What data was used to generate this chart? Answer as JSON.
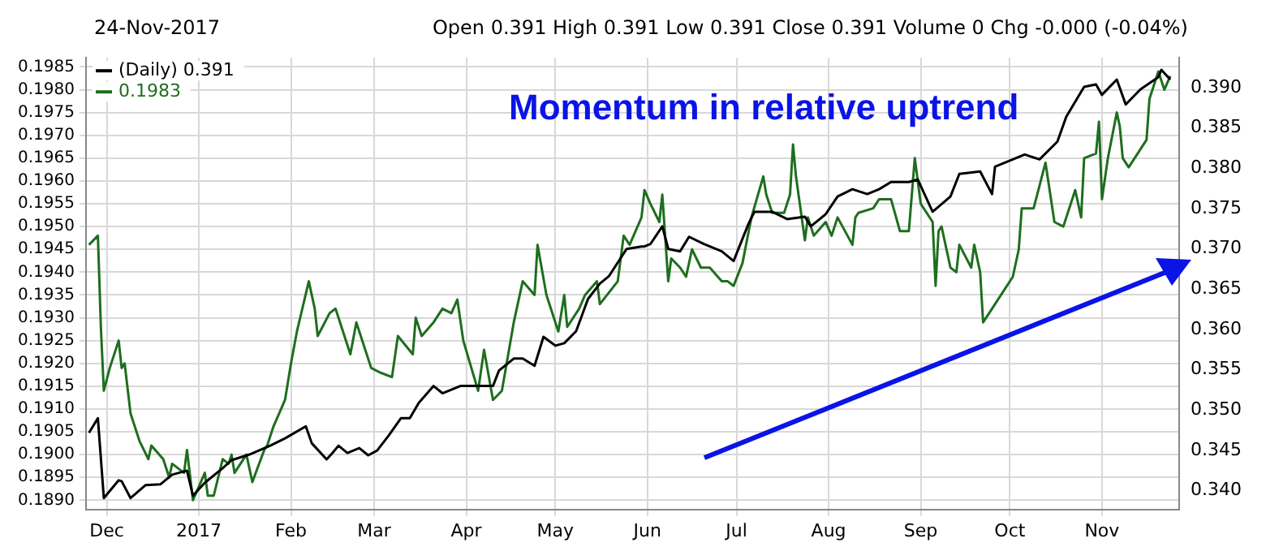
{
  "chart_data": {
    "type": "line",
    "title": "Momentum in relative uptrend",
    "annotations": [
      "24-Nov-2017",
      "Open 0.391 High 0.391 Low 0.391 Close 0.391 Volume 0 Chg -0.000 (-0.04%)"
    ],
    "legend": "top left",
    "grid": true,
    "marker": "none",
    "line_style": "solid",
    "xlim": [
      "2016-11-24",
      "2017-11-27"
    ],
    "xticks": [
      {
        "value": "2016-12-01",
        "label": "Dec"
      },
      {
        "value": "2017-01-01",
        "label": "2017"
      },
      {
        "value": "2017-02-01",
        "label": "Feb"
      },
      {
        "value": "2017-03-01",
        "label": "Mar"
      },
      {
        "value": "2017-04-01",
        "label": "Apr"
      },
      {
        "value": "2017-05-01",
        "label": "May"
      },
      {
        "value": "2017-06-01",
        "label": "Jun"
      },
      {
        "value": "2017-07-01",
        "label": "Jul"
      },
      {
        "value": "2017-08-01",
        "label": "Aug"
      },
      {
        "value": "2017-09-01",
        "label": "Sep"
      },
      {
        "value": "2017-10-01",
        "label": "Oct"
      },
      {
        "value": "2017-11-01",
        "label": "Nov"
      }
    ],
    "ylim": [
      0.1888,
      0.1987
    ],
    "yticks": [
      {
        "value": 0.189,
        "label": "0.1890"
      },
      0.1895,
      {
        "value": 0.19,
        "label": "0.1900"
      },
      0.1905,
      {
        "value": 0.191,
        "label": "0.1910"
      },
      0.1915,
      {
        "value": 0.192,
        "label": "0.1920"
      },
      0.1925,
      {
        "value": 0.193,
        "label": "0.1930"
      },
      0.1935,
      {
        "value": 0.194,
        "label": "0.1940"
      },
      0.1945,
      {
        "value": 0.195,
        "label": "0.1950"
      },
      0.1955,
      {
        "value": 0.196,
        "label": "0.1960"
      },
      0.1965,
      {
        "value": 0.197,
        "label": "0.1970"
      },
      0.1975,
      {
        "value": 0.198,
        "label": "0.1980"
      },
      0.1985
    ],
    "y2lim": [
      0.3377,
      0.3937
    ],
    "y2ticks": [
      {
        "value": 0.34,
        "label": "0.340"
      },
      0.345,
      {
        "value": 0.35,
        "label": "0.350"
      },
      0.355,
      {
        "value": 0.36,
        "label": "0.360"
      },
      0.365,
      {
        "value": 0.37,
        "label": "0.370"
      },
      0.375,
      {
        "value": 0.38,
        "label": "0.380"
      },
      0.385,
      {
        "value": 0.39,
        "label": "0.390"
      }
    ],
    "series": [
      {
        "name": "(Daily) 0.391",
        "color": "#000000",
        "axis": "y2",
        "x": [
          "2016-11-25",
          "2016-11-28",
          "2016-11-30",
          "2016-12-05",
          "2016-12-06",
          "2016-12-09",
          "2016-12-14",
          "2016-12-19",
          "2016-12-23",
          "2016-12-28",
          "2016-12-30",
          "2017-01-03",
          "2017-01-09",
          "2017-01-12",
          "2017-01-18",
          "2017-01-25",
          "2017-01-30",
          "2017-02-06",
          "2017-02-08",
          "2017-02-13",
          "2017-02-15",
          "2017-02-17",
          "2017-02-20",
          "2017-02-24",
          "2017-02-27",
          "2017-03-02",
          "2017-03-06",
          "2017-03-10",
          "2017-03-13",
          "2017-03-16",
          "2017-03-21",
          "2017-03-24",
          "2017-03-30",
          "2017-04-03",
          "2017-04-10",
          "2017-04-12",
          "2017-04-17",
          "2017-04-20",
          "2017-04-24",
          "2017-04-27",
          "2017-05-01",
          "2017-05-04",
          "2017-05-08",
          "2017-05-12",
          "2017-05-16",
          "2017-05-19",
          "2017-05-25",
          "2017-05-30",
          "2017-05-31",
          "2017-06-02",
          "2017-06-06",
          "2017-06-08",
          "2017-06-12",
          "2017-06-15",
          "2017-06-20",
          "2017-06-26",
          "2017-06-30",
          "2017-07-05",
          "2017-07-07",
          "2017-07-13",
          "2017-07-18",
          "2017-07-24",
          "2017-07-26",
          "2017-07-31",
          "2017-08-04",
          "2017-08-09",
          "2017-08-14",
          "2017-08-18",
          "2017-08-22",
          "2017-08-28",
          "2017-08-31",
          "2017-09-05",
          "2017-09-11",
          "2017-09-14",
          "2017-09-21",
          "2017-09-25",
          "2017-09-26",
          "2017-10-02",
          "2017-10-06",
          "2017-10-11",
          "2017-10-17",
          "2017-10-20",
          "2017-10-26",
          "2017-10-30",
          "2017-11-01",
          "2017-11-06",
          "2017-11-09",
          "2017-11-14",
          "2017-11-20",
          "2017-11-21",
          "2017-11-24"
        ],
        "values": [
          0.3472,
          0.349,
          0.3391,
          0.3413,
          0.3412,
          0.3391,
          0.3407,
          0.3408,
          0.342,
          0.3425,
          0.3394,
          0.341,
          0.3428,
          0.3438,
          0.3445,
          0.3456,
          0.3465,
          0.348,
          0.3459,
          0.3439,
          0.3447,
          0.3456,
          0.3447,
          0.3453,
          0.3444,
          0.345,
          0.3469,
          0.349,
          0.349,
          0.3509,
          0.353,
          0.3521,
          0.353,
          0.353,
          0.353,
          0.3549,
          0.3564,
          0.3564,
          0.3555,
          0.3591,
          0.358,
          0.3583,
          0.3598,
          0.3638,
          0.3657,
          0.3666,
          0.37,
          0.3703,
          0.3703,
          0.3706,
          0.3728,
          0.37,
          0.3697,
          0.3715,
          0.3706,
          0.3697,
          0.3685,
          0.3731,
          0.3746,
          0.3746,
          0.3737,
          0.374,
          0.3728,
          0.3743,
          0.3765,
          0.3774,
          0.3768,
          0.3774,
          0.3783,
          0.3783,
          0.3786,
          0.3746,
          0.3765,
          0.3793,
          0.3796,
          0.3768,
          0.3802,
          0.3811,
          0.3817,
          0.3811,
          0.3833,
          0.3864,
          0.3901,
          0.3904,
          0.3891,
          0.391,
          0.3879,
          0.3898,
          0.3913,
          0.3922,
          0.391
        ]
      },
      {
        "name": "0.1983",
        "color": "#1e6e1e",
        "x": [
          "2016-11-25",
          "2016-11-28",
          "2016-11-29",
          "2016-11-30",
          "2016-12-02",
          "2016-12-05",
          "2016-12-06",
          "2016-12-07",
          "2016-12-09",
          "2016-12-12",
          "2016-12-15",
          "2016-12-16",
          "2016-12-20",
          "2016-12-22",
          "2016-12-23",
          "2016-12-27",
          "2016-12-28",
          "2016-12-30",
          "2017-01-03",
          "2017-01-04",
          "2017-01-06",
          "2017-01-09",
          "2017-01-11",
          "2017-01-12",
          "2017-01-13",
          "2017-01-17",
          "2017-01-19",
          "2017-01-23",
          "2017-01-24",
          "2017-01-26",
          "2017-01-30",
          "2017-02-01",
          "2017-02-03",
          "2017-02-07",
          "2017-02-09",
          "2017-02-10",
          "2017-02-14",
          "2017-02-16",
          "2017-02-21",
          "2017-02-23",
          "2017-02-28",
          "2017-03-03",
          "2017-03-07",
          "2017-03-09",
          "2017-03-14",
          "2017-03-15",
          "2017-03-17",
          "2017-03-21",
          "2017-03-24",
          "2017-03-27",
          "2017-03-29",
          "2017-03-31",
          "2017-04-05",
          "2017-04-07",
          "2017-04-10",
          "2017-04-13",
          "2017-04-17",
          "2017-04-20",
          "2017-04-24",
          "2017-04-25",
          "2017-04-28",
          "2017-05-02",
          "2017-05-04",
          "2017-05-05",
          "2017-05-09",
          "2017-05-11",
          "2017-05-15",
          "2017-05-16",
          "2017-05-22",
          "2017-05-24",
          "2017-05-26",
          "2017-05-30",
          "2017-05-31",
          "2017-06-02",
          "2017-06-05",
          "2017-06-06",
          "2017-06-08",
          "2017-06-09",
          "2017-06-12",
          "2017-06-14",
          "2017-06-16",
          "2017-06-19",
          "2017-06-21",
          "2017-06-22",
          "2017-06-26",
          "2017-06-28",
          "2017-06-30",
          "2017-07-03",
          "2017-07-06",
          "2017-07-10",
          "2017-07-11",
          "2017-07-13",
          "2017-07-17",
          "2017-07-19",
          "2017-07-20",
          "2017-07-21",
          "2017-07-24",
          "2017-07-25",
          "2017-07-27",
          "2017-07-31",
          "2017-08-02",
          "2017-08-04",
          "2017-08-09",
          "2017-08-10",
          "2017-08-11",
          "2017-08-16",
          "2017-08-18",
          "2017-08-22",
          "2017-08-25",
          "2017-08-28",
          "2017-08-30",
          "2017-09-01",
          "2017-09-05",
          "2017-09-06",
          "2017-09-07",
          "2017-09-08",
          "2017-09-11",
          "2017-09-13",
          "2017-09-14",
          "2017-09-18",
          "2017-09-19",
          "2017-09-21",
          "2017-09-22",
          "2017-09-25",
          "2017-09-27",
          "2017-10-02",
          "2017-10-04",
          "2017-10-05",
          "2017-10-09",
          "2017-10-11",
          "2017-10-13",
          "2017-10-16",
          "2017-10-19",
          "2017-10-23",
          "2017-10-25",
          "2017-10-26",
          "2017-10-30",
          "2017-10-31",
          "2017-11-01",
          "2017-11-03",
          "2017-11-06",
          "2017-11-07",
          "2017-11-08",
          "2017-11-10",
          "2017-11-14",
          "2017-11-16",
          "2017-11-17",
          "2017-11-20",
          "2017-11-22",
          "2017-11-24"
        ],
        "values": [
          0.1946,
          0.1948,
          0.1928,
          0.1914,
          0.1919,
          0.1925,
          0.1919,
          0.192,
          0.1909,
          0.1903,
          0.1899,
          0.1902,
          0.1899,
          0.1895,
          0.1898,
          0.1896,
          0.1901,
          0.189,
          0.1896,
          0.1891,
          0.1891,
          0.1899,
          0.1898,
          0.19,
          0.1896,
          0.19,
          0.1894,
          0.1901,
          0.1902,
          0.1906,
          0.1912,
          0.192,
          0.1927,
          0.1938,
          0.1932,
          0.1926,
          0.1931,
          0.1932,
          0.1922,
          0.1929,
          0.1919,
          0.1918,
          0.1917,
          0.1926,
          0.1922,
          0.193,
          0.1926,
          0.1929,
          0.1932,
          0.1931,
          0.1934,
          0.1925,
          0.1914,
          0.1923,
          0.1912,
          0.1914,
          0.1929,
          0.1938,
          0.1935,
          0.1946,
          0.1935,
          0.1927,
          0.1935,
          0.1928,
          0.1932,
          0.1935,
          0.1938,
          0.1933,
          0.1938,
          0.1948,
          0.1946,
          0.1952,
          0.1958,
          0.1955,
          0.1951,
          0.1957,
          0.1938,
          0.1943,
          0.1941,
          0.1939,
          0.1945,
          0.1941,
          0.1941,
          0.1941,
          0.1938,
          0.1938,
          0.1937,
          0.1942,
          0.1952,
          0.1961,
          0.1957,
          0.1953,
          0.1953,
          0.1957,
          0.1968,
          0.1961,
          0.1947,
          0.1952,
          0.1948,
          0.1951,
          0.1948,
          0.1952,
          0.1946,
          0.1952,
          0.1953,
          0.1954,
          0.1956,
          0.1956,
          0.1949,
          0.1949,
          0.1965,
          0.1955,
          0.1951,
          0.1937,
          0.1949,
          0.195,
          0.1941,
          0.194,
          0.1946,
          0.1941,
          0.1946,
          0.194,
          0.1929,
          0.1932,
          0.1934,
          0.1939,
          0.1945,
          0.1954,
          0.1954,
          0.1959,
          0.1964,
          0.1951,
          0.195,
          0.1958,
          0.1952,
          0.1965,
          0.1966,
          0.1973,
          0.1956,
          0.1965,
          0.1975,
          0.1972,
          0.1965,
          0.1963,
          0.1967,
          0.1969,
          0.1978,
          0.1984,
          0.198,
          0.1983
        ]
      }
    ]
  }
}
